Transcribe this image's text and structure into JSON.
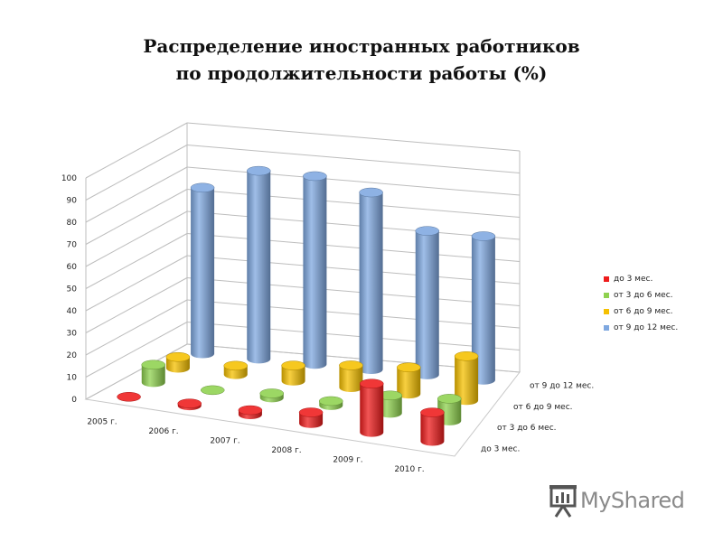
{
  "chart_data": {
    "type": "bar",
    "subtype": "3d-cylinder",
    "title_lines": [
      "Распределение  иностранных работников",
      "по продолжительности работы (%)"
    ],
    "categories": [
      "2005 г.",
      "2006 г.",
      "2007 г.",
      "2008 г.",
      "2009 г.",
      "2010 г."
    ],
    "series": [
      {
        "name": "до 3 мес.",
        "color": "#ee1c1c",
        "values": [
          0,
          1,
          2,
          5,
          22,
          13
        ]
      },
      {
        "name": "от 3 до 6 мес.",
        "color": "#8fd14f",
        "values": [
          8,
          0,
          2,
          2,
          8,
          10
        ]
      },
      {
        "name": "от 6 до 9 мес.",
        "color": "#f5c000",
        "values": [
          5,
          4,
          7,
          10,
          12,
          20
        ]
      },
      {
        "name": "от 9 до 12 мес.",
        "color": "#7fa8e0",
        "values": [
          75,
          85,
          85,
          80,
          65,
          65
        ]
      }
    ],
    "yticks": [
      0,
      10,
      20,
      30,
      40,
      50,
      60,
      70,
      80,
      90,
      100
    ],
    "ylim": [
      0,
      100
    ],
    "grid": true,
    "legend_position": "right"
  },
  "watermark": {
    "text": "MyShared",
    "icon": "presentation-board-icon"
  }
}
